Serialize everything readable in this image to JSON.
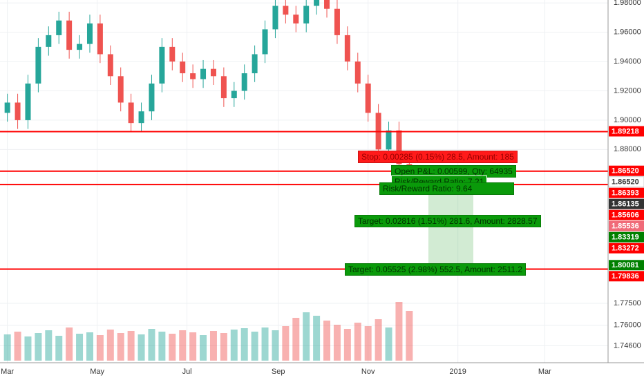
{
  "chart_data": {
    "type": "candlestick",
    "x": [
      0,
      7,
      14,
      21,
      28,
      35,
      42,
      49,
      56,
      63,
      70,
      77,
      84,
      91,
      98,
      105,
      112,
      119,
      126,
      133,
      140,
      147,
      154,
      161,
      168,
      175,
      182,
      189,
      196,
      203,
      210,
      217,
      224,
      231,
      238,
      245,
      252,
      259,
      266,
      273
    ],
    "open": [
      1.905,
      1.912,
      1.9,
      1.925,
      1.95,
      1.958,
      1.968,
      1.948,
      1.952,
      1.966,
      1.945,
      1.93,
      1.912,
      1.898,
      1.906,
      1.925,
      1.95,
      1.94,
      1.932,
      1.928,
      1.935,
      1.93,
      1.915,
      1.92,
      1.932,
      1.945,
      1.962,
      1.978,
      1.972,
      1.966,
      1.978,
      1.985,
      1.976,
      1.958,
      1.94,
      1.925,
      1.905,
      1.88,
      1.893,
      1.87
    ],
    "high": [
      1.918,
      1.918,
      1.931,
      1.956,
      1.964,
      1.974,
      1.974,
      1.958,
      1.972,
      1.972,
      1.951,
      1.936,
      1.918,
      1.912,
      1.931,
      1.956,
      1.956,
      1.946,
      1.938,
      1.941,
      1.941,
      1.936,
      1.926,
      1.938,
      1.951,
      1.968,
      1.984,
      1.984,
      1.978,
      1.984,
      1.991,
      1.991,
      1.982,
      1.964,
      1.946,
      1.931,
      1.911,
      1.899,
      1.899,
      1.876
    ],
    "low": [
      1.899,
      1.894,
      1.894,
      1.919,
      1.944,
      1.952,
      1.942,
      1.942,
      1.946,
      1.939,
      1.924,
      1.906,
      1.892,
      1.892,
      1.9,
      1.919,
      1.934,
      1.926,
      1.922,
      1.922,
      1.924,
      1.909,
      1.909,
      1.914,
      1.926,
      1.939,
      1.956,
      1.966,
      1.96,
      1.96,
      1.972,
      1.97,
      1.952,
      1.934,
      1.919,
      1.899,
      1.874,
      1.874,
      1.864,
      1.851
    ],
    "close": [
      1.912,
      1.9,
      1.925,
      1.95,
      1.958,
      1.968,
      1.948,
      1.952,
      1.966,
      1.945,
      1.93,
      1.912,
      1.898,
      1.906,
      1.925,
      1.95,
      1.94,
      1.932,
      1.928,
      1.935,
      1.93,
      1.915,
      1.92,
      1.932,
      1.945,
      1.962,
      1.978,
      1.972,
      1.966,
      1.978,
      1.985,
      1.976,
      1.958,
      1.94,
      1.925,
      1.905,
      1.88,
      1.893,
      1.87,
      1.857
    ],
    "volume": [
      38,
      42,
      35,
      40,
      44,
      36,
      48,
      39,
      41,
      37,
      45,
      40,
      43,
      38,
      46,
      42,
      39,
      44,
      41,
      37,
      43,
      40,
      45,
      47,
      42,
      48,
      44,
      50,
      62,
      70,
      65,
      58,
      52,
      46,
      55,
      50,
      60,
      48,
      85,
      72
    ],
    "volume_ylim": [
      0,
      100
    ],
    "up_color": "#26a69a",
    "down_color": "#ef5350",
    "xlim": [
      -5,
      408
    ],
    "xticks": [
      {
        "value": 0,
        "label": "Mar"
      },
      {
        "value": 61,
        "label": "May"
      },
      {
        "value": 122,
        "label": "Jul"
      },
      {
        "value": 184,
        "label": "Sep"
      },
      {
        "value": 245,
        "label": "Nov"
      },
      {
        "value": 306,
        "label": "2019"
      },
      {
        "value": 365,
        "label": "Mar"
      }
    ],
    "ylim": [
      1.742,
      1.982
    ],
    "yticks": [
      {
        "value": 1.98,
        "label": "1.98000"
      },
      {
        "value": 1.96,
        "label": "1.96000"
      },
      {
        "value": 1.94,
        "label": "1.94000"
      },
      {
        "value": 1.92,
        "label": "1.92000"
      },
      {
        "value": 1.9,
        "label": "1.90000"
      },
      {
        "value": 1.88,
        "label": "1.88000"
      },
      {
        "value": 1.775,
        "label": "1.77500"
      },
      {
        "value": 1.76,
        "label": "1.76000"
      },
      {
        "value": 1.746,
        "label": "1.74600"
      }
    ],
    "grid": true,
    "levels": [
      1.89218,
      1.8652,
      1.85606,
      1.79836
    ],
    "level_color": "#ff0000",
    "price_labels": [
      {
        "value": 1.89218,
        "label": "1.89218",
        "color": "#ff0000"
      },
      {
        "value": 1.8652,
        "label": "1.86520",
        "color": "#ff0000"
      },
      {
        "value": 1.8652,
        "label": "1.86520",
        "color": "#ffffff"
      },
      {
        "value": 1.86393,
        "label": "1.86393",
        "color": "#ff0000"
      },
      {
        "value": 1.86135,
        "label": "1.86135",
        "color": "#333333"
      },
      {
        "value": 1.85606,
        "label": "1.85606",
        "color": "#ff0000"
      },
      {
        "value": 1.85536,
        "label": "1.85536",
        "color": "#f06a78"
      },
      {
        "value": 1.83319,
        "label": "1.83319",
        "color": "#008000"
      },
      {
        "value": 1.83272,
        "label": "1.83272",
        "color": "#ff0000"
      },
      {
        "value": 1.80081,
        "label": "1.80081",
        "color": "#008000"
      },
      {
        "value": 1.79836,
        "label": "1.79836",
        "color": "#ff0000"
      }
    ],
    "annotations": {
      "stop": "Stop: 0.00285 (0.15%) 28.5, Amount: 185",
      "open_pl": "Open P&L: 0.00599, Qty: 64935",
      "rr1": "Risk/Reward Ratio: 7.21",
      "rr2": "Risk/Reward Ratio: 9.64",
      "target1": "Target: 0.02816 (1.51%) 281.6, Amount: 2828.57",
      "target2": "Target: 0.05525 (2.98%) 552.5, Amount: 2511.2"
    }
  }
}
